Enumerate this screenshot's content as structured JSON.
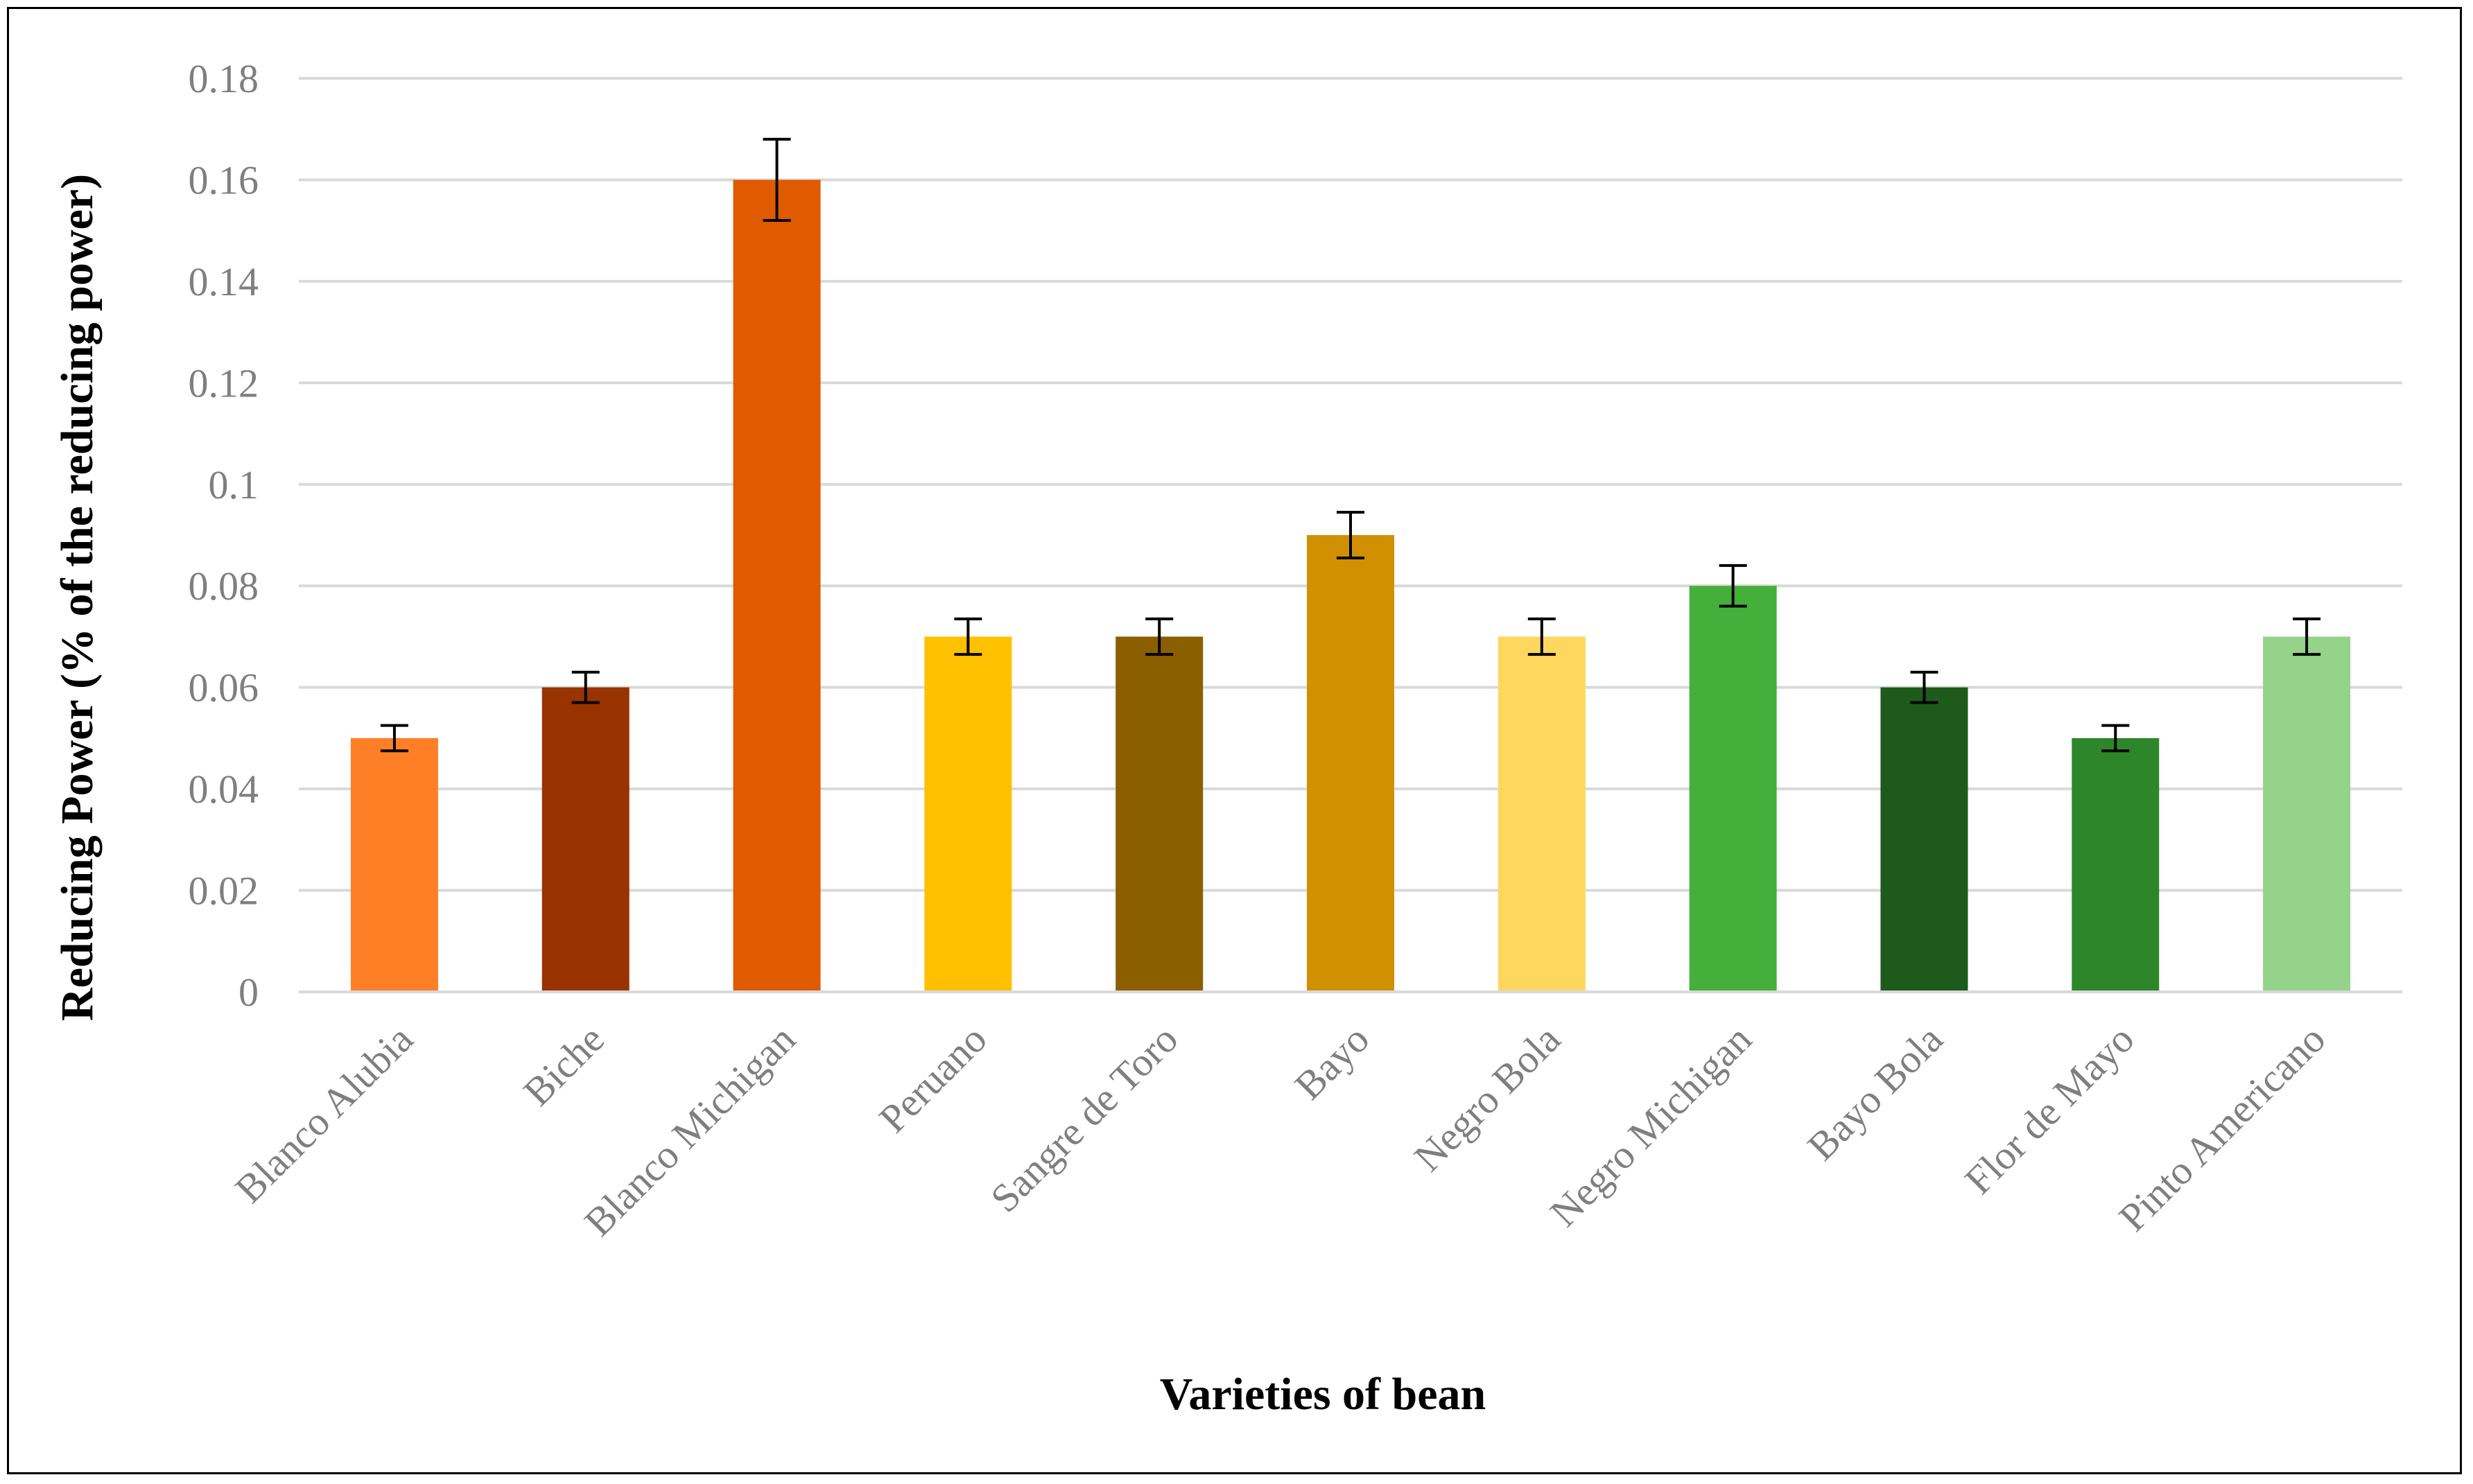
{
  "chart_data": {
    "type": "bar",
    "title": "",
    "xlabel": "Varieties of bean",
    "ylabel": "Reducing Power (% of the reducing power)",
    "ylim": [
      0,
      0.18
    ],
    "yticks": [
      "0",
      "0.02",
      "0.04",
      "0.06",
      "0.08",
      "0.1",
      "0.12",
      "0.14",
      "0.16",
      "0.18"
    ],
    "grid": true,
    "legend": "none",
    "categories": [
      "Blanco Alubia",
      "Biche",
      "Blanco Michigan",
      "Peruano",
      "Sangre de Toro",
      "Bayo",
      "Negro Bola",
      "Negro Michigan",
      "Bayo Bola",
      "Flor de Mayo",
      "Pinto Americano"
    ],
    "values": [
      0.05,
      0.06,
      0.16,
      0.07,
      0.07,
      0.09,
      0.07,
      0.08,
      0.06,
      0.05,
      0.07
    ],
    "errors": [
      0.0025,
      0.003,
      0.008,
      0.0035,
      0.0035,
      0.0045,
      0.0035,
      0.004,
      0.003,
      0.0025,
      0.0035
    ],
    "colors": [
      "#ff7f27",
      "#993300",
      "#e05a00",
      "#ffc000",
      "#8b5e00",
      "#d09000",
      "#ffd75e",
      "#44b03b",
      "#1e5a1c",
      "#2e862a",
      "#95d28a"
    ]
  }
}
